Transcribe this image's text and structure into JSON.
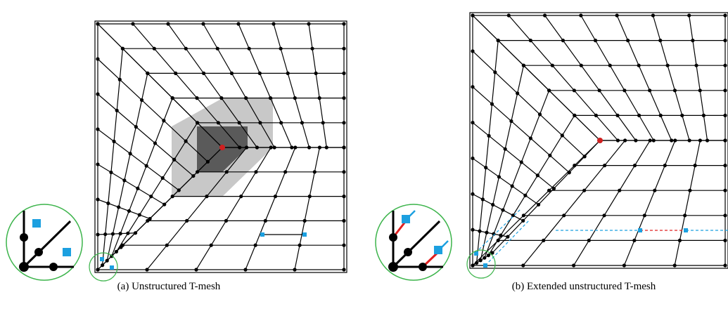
{
  "captions": {
    "a": "(a)  Unstructured T-mesh",
    "b": "(b)  Extended unstructured T-mesh"
  }
}
